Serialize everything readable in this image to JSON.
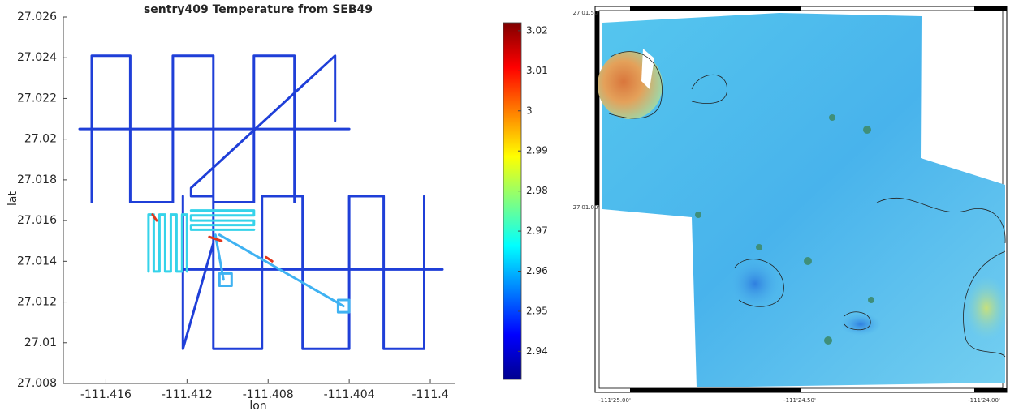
{
  "chart_data": {
    "type": "line",
    "title": "sentry409 Temperature from SEB49",
    "xlabel": "lon",
    "ylabel": "lat",
    "xlim": [
      -111.4181,
      -111.3988
    ],
    "ylim": [
      27.008,
      27.026
    ],
    "xticks": [
      -111.416,
      -111.412,
      -111.408,
      -111.404,
      -111.4
    ],
    "yticks": [
      27.008,
      27.01,
      27.012,
      27.014,
      27.016,
      27.018,
      27.02,
      27.022,
      27.024,
      27.026
    ],
    "series": [
      {
        "color": "#1f3fd8",
        "x": [
          -111.4167,
          -111.4167,
          -111.4148,
          -111.4148,
          -111.4127,
          -111.4127,
          -111.4107,
          -111.4107,
          -111.4087,
          -111.4087,
          -111.4067,
          -111.4067,
          null,
          -111.404,
          -111.4173,
          null,
          -111.4047,
          -111.4047,
          -111.4118,
          -111.4118,
          -111.4107,
          -111.4107,
          -111.4083,
          -111.4083,
          -111.4063,
          -111.4063,
          -111.404,
          -111.404,
          -111.4023,
          -111.4023,
          -111.4003,
          -111.4003,
          null,
          -111.3994,
          -111.4122,
          -111.4122,
          -111.4122,
          -111.4107
        ],
        "values": [
          27.0169,
          27.0241,
          27.0241,
          27.0169,
          27.0169,
          27.0241,
          27.0241,
          27.0169,
          27.0169,
          27.0241,
          27.0241,
          27.0169,
          null,
          27.0205,
          27.0205,
          null,
          27.0209,
          27.0241,
          27.0176,
          27.0172,
          27.0172,
          27.0097,
          27.0097,
          27.0172,
          27.0172,
          27.0097,
          27.0097,
          27.0172,
          27.0172,
          27.0097,
          27.0097,
          27.0172,
          null,
          27.0136,
          27.0136,
          27.0172,
          27.0097,
          27.0149
        ]
      },
      {
        "color": "#35d3ea",
        "x": [
          -111.4139,
          -111.4139,
          -111.41364,
          -111.41364,
          -111.41336,
          -111.41336,
          -111.41308,
          -111.41308,
          -111.4128,
          -111.4128,
          -111.41252,
          -111.41252,
          -111.41224,
          -111.41224,
          -111.412,
          -111.412,
          null,
          -111.4118,
          -111.4087,
          -111.4087,
          -111.4118,
          -111.4118,
          -111.4087,
          -111.4087,
          -111.4118,
          -111.4118,
          -111.4087
        ],
        "values": [
          27.0135,
          27.0163,
          27.0163,
          27.0135,
          27.0135,
          27.0163,
          27.0163,
          27.0135,
          27.0135,
          27.0163,
          27.0163,
          27.0135,
          27.0135,
          27.0163,
          27.0163,
          27.0135,
          null,
          27.0165,
          27.0165,
          27.01625,
          27.01625,
          27.016,
          27.016,
          27.01578,
          27.01578,
          27.01555,
          27.01555
        ]
      },
      {
        "color": "#3fb2f2",
        "x": [
          -111.4106,
          -111.4102,
          null,
          -111.4104,
          -111.40428,
          null,
          -111.4104,
          -111.4098,
          -111.4098,
          -111.4104,
          -111.4104,
          null,
          -111.40455,
          -111.404,
          -111.404,
          -111.40455,
          -111.40455
        ],
        "values": [
          27.0153,
          27.0131,
          null,
          27.0153,
          27.0118,
          null,
          27.0134,
          27.0134,
          27.0128,
          27.0128,
          27.0134,
          null,
          27.0121,
          27.0121,
          27.0115,
          27.0115,
          27.0121
        ]
      },
      {
        "color": "#e2361c",
        "x": [
          -111.4109,
          -111.4103,
          null,
          -111.4081,
          -111.4078,
          null,
          -111.4137,
          -111.4135
        ],
        "values": [
          27.0152,
          27.015,
          null,
          27.0142,
          27.014,
          null,
          27.0163,
          27.016
        ]
      }
    ],
    "colorbar": {
      "clim": [
        2.933,
        3.022
      ],
      "ticks": [
        2.94,
        2.95,
        2.96,
        2.97,
        2.98,
        2.99,
        3,
        3.01,
        3.02
      ],
      "colormap": [
        "#00008f",
        "#0000ff",
        "#0080ff",
        "#00ffff",
        "#80ff80",
        "#ffff00",
        "#ff8000",
        "#ff0000",
        "#800000"
      ]
    }
  },
  "map": {
    "lat_labels": [
      "27'01.50'",
      "27'01.00'"
    ],
    "lon_labels": [
      "-111'25.00'",
      "-111'24.50'",
      "-111'24.00'"
    ]
  }
}
